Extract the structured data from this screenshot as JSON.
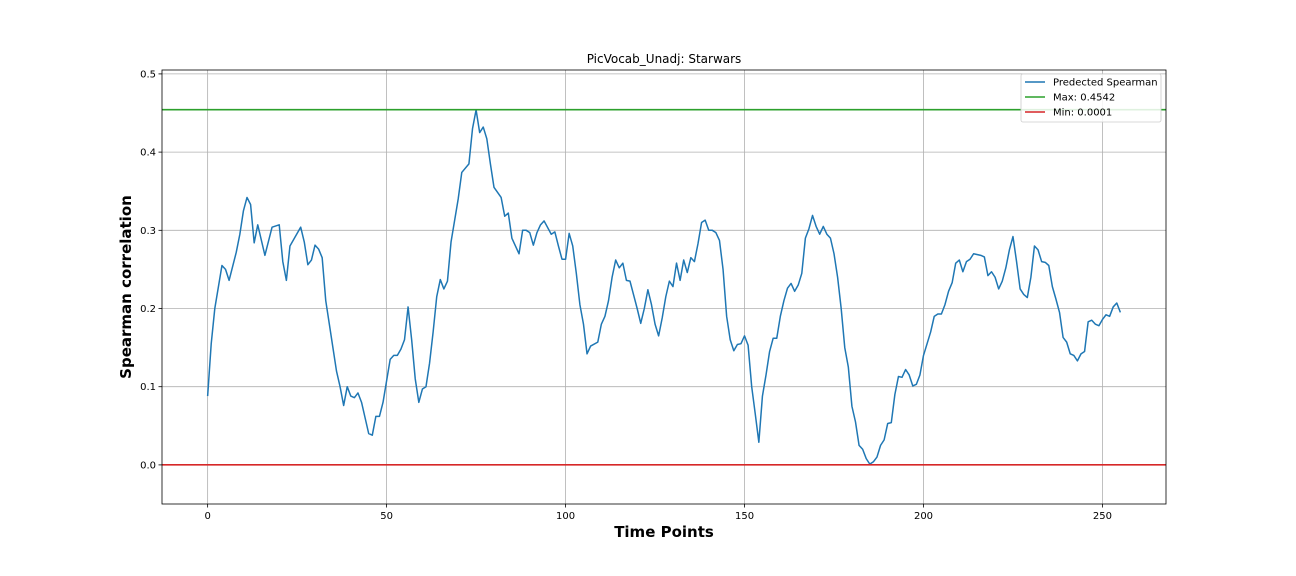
{
  "chart_data": {
    "type": "line",
    "title": "PicVocab_Unadj: Starwars",
    "xlabel": "Time Points",
    "ylabel": "Spearman correlation",
    "xlim": [
      -12.75,
      267.75
    ],
    "ylim": [
      -0.05,
      0.505
    ],
    "xticks": [
      0,
      50,
      100,
      150,
      200,
      250
    ],
    "yticks": [
      0.0,
      0.1,
      0.2,
      0.3,
      0.4,
      0.5
    ],
    "xtick_labels": [
      "0",
      "50",
      "100",
      "150",
      "200",
      "250"
    ],
    "ytick_labels": [
      "0.0",
      "0.1",
      "0.2",
      "0.3",
      "0.4",
      "0.5"
    ],
    "grid": true,
    "legend_position": "upper right",
    "series": [
      {
        "name": "Predected Spearman",
        "color": "#1f77b4",
        "anchors": [
          [
            0,
            0.088
          ],
          [
            1,
            0.155
          ],
          [
            2,
            0.2
          ],
          [
            4,
            0.255
          ],
          [
            5,
            0.25
          ],
          [
            6,
            0.236
          ],
          [
            8,
            0.272
          ],
          [
            9,
            0.295
          ],
          [
            10,
            0.325
          ],
          [
            11,
            0.342
          ],
          [
            12,
            0.333
          ],
          [
            13,
            0.284
          ],
          [
            14,
            0.307
          ],
          [
            16,
            0.268
          ],
          [
            18,
            0.304
          ],
          [
            20,
            0.307
          ],
          [
            21,
            0.26
          ],
          [
            22,
            0.236
          ],
          [
            23,
            0.28
          ],
          [
            26,
            0.304
          ],
          [
            27,
            0.285
          ],
          [
            28,
            0.256
          ],
          [
            29,
            0.262
          ],
          [
            30,
            0.281
          ],
          [
            31,
            0.276
          ],
          [
            32,
            0.265
          ],
          [
            33,
            0.21
          ],
          [
            34,
            0.18
          ],
          [
            35,
            0.15
          ],
          [
            36,
            0.12
          ],
          [
            37,
            0.1
          ],
          [
            38,
            0.076
          ],
          [
            39,
            0.1
          ],
          [
            40,
            0.088
          ],
          [
            41,
            0.086
          ],
          [
            42,
            0.092
          ],
          [
            43,
            0.08
          ],
          [
            44,
            0.06
          ],
          [
            45,
            0.04
          ],
          [
            46,
            0.038
          ],
          [
            47,
            0.062
          ],
          [
            48,
            0.062
          ],
          [
            49,
            0.08
          ],
          [
            51,
            0.135
          ],
          [
            52,
            0.14
          ],
          [
            53,
            0.14
          ],
          [
            54,
            0.148
          ],
          [
            55,
            0.16
          ],
          [
            56,
            0.202
          ],
          [
            57,
            0.16
          ],
          [
            58,
            0.11
          ],
          [
            59,
            0.08
          ],
          [
            60,
            0.097
          ],
          [
            61,
            0.1
          ],
          [
            62,
            0.13
          ],
          [
            63,
            0.17
          ],
          [
            64,
            0.215
          ],
          [
            65,
            0.237
          ],
          [
            66,
            0.225
          ],
          [
            67,
            0.235
          ],
          [
            68,
            0.285
          ],
          [
            70,
            0.34
          ],
          [
            71,
            0.374
          ],
          [
            73,
            0.385
          ],
          [
            74,
            0.43
          ],
          [
            75,
            0.454
          ],
          [
            76,
            0.425
          ],
          [
            77,
            0.432
          ],
          [
            78,
            0.417
          ],
          [
            79,
            0.385
          ],
          [
            80,
            0.355
          ],
          [
            82,
            0.342
          ],
          [
            83,
            0.318
          ],
          [
            84,
            0.322
          ],
          [
            85,
            0.29
          ],
          [
            87,
            0.27
          ],
          [
            88,
            0.3
          ],
          [
            89,
            0.3
          ],
          [
            90,
            0.297
          ],
          [
            91,
            0.281
          ],
          [
            92,
            0.297
          ],
          [
            93,
            0.307
          ],
          [
            94,
            0.312
          ],
          [
            96,
            0.295
          ],
          [
            97,
            0.298
          ],
          [
            98,
            0.28
          ],
          [
            99,
            0.263
          ],
          [
            100,
            0.263
          ],
          [
            101,
            0.296
          ],
          [
            102,
            0.28
          ],
          [
            103,
            0.245
          ],
          [
            104,
            0.205
          ],
          [
            105,
            0.18
          ],
          [
            106,
            0.142
          ],
          [
            107,
            0.152
          ],
          [
            109,
            0.157
          ],
          [
            110,
            0.18
          ],
          [
            111,
            0.19
          ],
          [
            112,
            0.21
          ],
          [
            113,
            0.24
          ],
          [
            114,
            0.262
          ],
          [
            115,
            0.252
          ],
          [
            116,
            0.258
          ],
          [
            117,
            0.236
          ],
          [
            118,
            0.235
          ],
          [
            120,
            0.2
          ],
          [
            121,
            0.181
          ],
          [
            122,
            0.2
          ],
          [
            123,
            0.224
          ],
          [
            124,
            0.205
          ],
          [
            125,
            0.18
          ],
          [
            126,
            0.165
          ],
          [
            127,
            0.188
          ],
          [
            128,
            0.215
          ],
          [
            129,
            0.235
          ],
          [
            130,
            0.228
          ],
          [
            131,
            0.258
          ],
          [
            132,
            0.236
          ],
          [
            133,
            0.262
          ],
          [
            134,
            0.246
          ],
          [
            135,
            0.265
          ],
          [
            136,
            0.26
          ],
          [
            137,
            0.283
          ],
          [
            138,
            0.31
          ],
          [
            139,
            0.313
          ],
          [
            140,
            0.3
          ],
          [
            141,
            0.3
          ],
          [
            142,
            0.297
          ],
          [
            143,
            0.287
          ],
          [
            144,
            0.25
          ],
          [
            145,
            0.19
          ],
          [
            146,
            0.16
          ],
          [
            147,
            0.146
          ],
          [
            148,
            0.154
          ],
          [
            149,
            0.155
          ],
          [
            150,
            0.165
          ],
          [
            151,
            0.153
          ],
          [
            152,
            0.1
          ],
          [
            153,
            0.065
          ],
          [
            154,
            0.029
          ],
          [
            155,
            0.088
          ],
          [
            156,
            0.115
          ],
          [
            157,
            0.145
          ],
          [
            158,
            0.162
          ],
          [
            159,
            0.162
          ],
          [
            160,
            0.19
          ],
          [
            161,
            0.21
          ],
          [
            162,
            0.226
          ],
          [
            163,
            0.232
          ],
          [
            164,
            0.222
          ],
          [
            165,
            0.23
          ],
          [
            166,
            0.245
          ],
          [
            167,
            0.29
          ],
          [
            168,
            0.302
          ],
          [
            169,
            0.319
          ],
          [
            170,
            0.305
          ],
          [
            171,
            0.295
          ],
          [
            172,
            0.305
          ],
          [
            173,
            0.295
          ],
          [
            174,
            0.29
          ],
          [
            175,
            0.27
          ],
          [
            176,
            0.24
          ],
          [
            177,
            0.2
          ],
          [
            178,
            0.15
          ],
          [
            179,
            0.125
          ],
          [
            180,
            0.075
          ],
          [
            181,
            0.055
          ],
          [
            182,
            0.025
          ],
          [
            183,
            0.02
          ],
          [
            184,
            0.008
          ],
          [
            185,
            0.001
          ],
          [
            186,
            0.004
          ],
          [
            187,
            0.01
          ],
          [
            188,
            0.025
          ],
          [
            189,
            0.032
          ],
          [
            190,
            0.053
          ],
          [
            191,
            0.054
          ],
          [
            192,
            0.09
          ],
          [
            193,
            0.113
          ],
          [
            194,
            0.112
          ],
          [
            195,
            0.122
          ],
          [
            196,
            0.115
          ],
          [
            197,
            0.101
          ],
          [
            198,
            0.103
          ],
          [
            199,
            0.115
          ],
          [
            200,
            0.14
          ],
          [
            201,
            0.155
          ],
          [
            202,
            0.17
          ],
          [
            203,
            0.19
          ],
          [
            204,
            0.193
          ],
          [
            205,
            0.193
          ],
          [
            206,
            0.205
          ],
          [
            207,
            0.222
          ],
          [
            208,
            0.233
          ],
          [
            209,
            0.258
          ],
          [
            210,
            0.262
          ],
          [
            211,
            0.247
          ],
          [
            212,
            0.26
          ],
          [
            213,
            0.263
          ],
          [
            214,
            0.27
          ],
          [
            216,
            0.268
          ],
          [
            217,
            0.266
          ],
          [
            218,
            0.242
          ],
          [
            219,
            0.247
          ],
          [
            220,
            0.24
          ],
          [
            221,
            0.225
          ],
          [
            222,
            0.235
          ],
          [
            223,
            0.252
          ],
          [
            224,
            0.275
          ],
          [
            225,
            0.292
          ],
          [
            226,
            0.26
          ],
          [
            227,
            0.225
          ],
          [
            228,
            0.218
          ],
          [
            229,
            0.214
          ],
          [
            230,
            0.24
          ],
          [
            231,
            0.28
          ],
          [
            232,
            0.275
          ],
          [
            233,
            0.26
          ],
          [
            234,
            0.259
          ],
          [
            235,
            0.255
          ],
          [
            236,
            0.228
          ],
          [
            237,
            0.212
          ],
          [
            238,
            0.195
          ],
          [
            239,
            0.163
          ],
          [
            240,
            0.157
          ],
          [
            241,
            0.142
          ],
          [
            242,
            0.14
          ],
          [
            243,
            0.133
          ],
          [
            244,
            0.142
          ],
          [
            245,
            0.145
          ],
          [
            246,
            0.183
          ],
          [
            247,
            0.185
          ],
          [
            248,
            0.18
          ],
          [
            249,
            0.178
          ],
          [
            250,
            0.186
          ],
          [
            251,
            0.192
          ],
          [
            252,
            0.19
          ],
          [
            253,
            0.202
          ],
          [
            254,
            0.207
          ],
          [
            255,
            0.195
          ]
        ]
      },
      {
        "name": "Max: 0.4542",
        "color": "#2ca02c",
        "type": "hline",
        "y": 0.4542
      },
      {
        "name": "Min: 0.0001",
        "color": "#d62728",
        "type": "hline",
        "y": 0.0001
      }
    ]
  }
}
